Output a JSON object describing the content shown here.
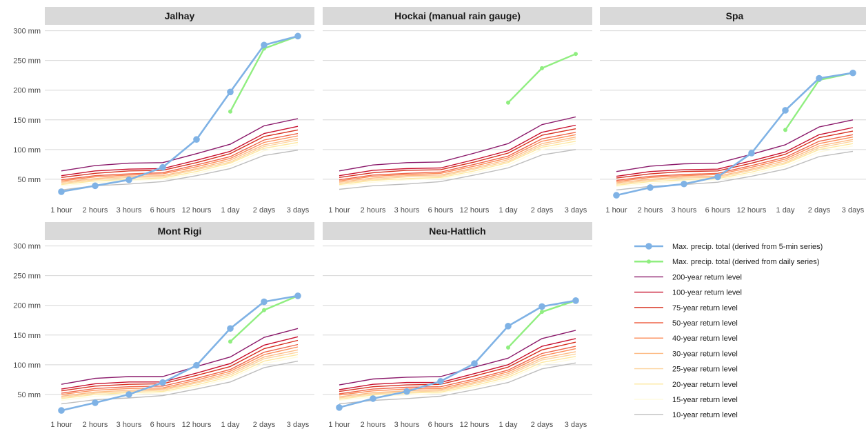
{
  "chart_data": {
    "type": "line",
    "categories": [
      "1 hour",
      "2 hours",
      "3 hours",
      "6 hours",
      "12 hours",
      "1 day",
      "2 days",
      "3 days"
    ],
    "y_tick_values": [
      50,
      100,
      150,
      200,
      250,
      300
    ],
    "y_tick_labels": [
      "50 mm",
      "100 mm",
      "150 mm",
      "200 mm",
      "250 mm",
      "300 mm"
    ],
    "ylim": [
      15,
      310
    ],
    "grid": true,
    "legend_position": "bottom-right",
    "series_styles": [
      {
        "key": "rl200",
        "label": "200-year return level",
        "color": "#8b1a6b",
        "kind": "line"
      },
      {
        "key": "rl100",
        "label": "100-year return level",
        "color": "#c8102e",
        "kind": "line"
      },
      {
        "key": "rl75",
        "label": "75-year return level",
        "color": "#d7301f",
        "kind": "line"
      },
      {
        "key": "rl50",
        "label": "50-year return level",
        "color": "#ef6548",
        "kind": "line"
      },
      {
        "key": "rl40",
        "label": "40-year return level",
        "color": "#fc8d59",
        "kind": "line"
      },
      {
        "key": "rl30",
        "label": "30-year return level",
        "color": "#fdbb84",
        "kind": "line"
      },
      {
        "key": "rl25",
        "label": "25-year return level",
        "color": "#fdd49e",
        "kind": "line"
      },
      {
        "key": "rl20",
        "label": "20-year return level",
        "color": "#fee8a0",
        "kind": "line"
      },
      {
        "key": "rl15",
        "label": "15-year return level",
        "color": "#fffbe0",
        "kind": "line"
      },
      {
        "key": "rl10",
        "label": "10-year return level",
        "color": "#bdbdbd",
        "kind": "line"
      },
      {
        "key": "daily",
        "label": "Max. precip. total (derived from daily series)",
        "color": "#90ee80",
        "kind": "point_small"
      },
      {
        "key": "fivemin",
        "label": "Max. precip. total (derived from 5-min series)",
        "color": "#7fb2e5",
        "kind": "point_large"
      }
    ],
    "legend_order": [
      "fivemin",
      "daily",
      "rl200",
      "rl100",
      "rl75",
      "rl50",
      "rl40",
      "rl30",
      "rl25",
      "rl20",
      "rl15",
      "rl10"
    ],
    "panels": [
      {
        "title": "Jalhay",
        "series": {
          "rl200": [
            64,
            73,
            77,
            78,
            93,
            109,
            140,
            152
          ],
          "rl100": [
            56,
            64,
            67,
            68,
            82,
            97,
            127,
            139
          ],
          "rl75": [
            53,
            60,
            64,
            65,
            78,
            93,
            122,
            133
          ],
          "rl50": [
            49,
            56,
            59,
            61,
            74,
            88,
            116,
            127
          ],
          "rl40": [
            47,
            54,
            57,
            59,
            71,
            85,
            112,
            123
          ],
          "rl30": [
            45,
            51,
            55,
            56,
            68,
            82,
            108,
            119
          ],
          "rl25": [
            43,
            49,
            53,
            54,
            66,
            79,
            105,
            116
          ],
          "rl20": [
            41,
            47,
            50,
            52,
            63,
            77,
            102,
            112
          ],
          "rl15": [
            39,
            44,
            48,
            50,
            60,
            73,
            98,
            108
          ],
          "rl10": [
            32,
            39,
            42,
            46,
            56,
            68,
            90,
            99
          ],
          "daily": [
            null,
            null,
            null,
            null,
            null,
            164,
            270,
            291
          ],
          "fivemin": [
            29,
            39,
            49,
            70,
            117,
            197,
            276,
            291
          ]
        }
      },
      {
        "title": "Hockai (manual rain gauge)",
        "series": {
          "rl200": [
            64,
            74,
            78,
            79,
            94,
            110,
            142,
            155
          ],
          "rl100": [
            56,
            65,
            68,
            69,
            83,
            98,
            129,
            141
          ],
          "rl75": [
            53,
            61,
            65,
            66,
            79,
            94,
            124,
            135
          ],
          "rl50": [
            49,
            57,
            60,
            62,
            75,
            89,
            118,
            129
          ],
          "rl40": [
            47,
            55,
            58,
            60,
            72,
            86,
            114,
            125
          ],
          "rl30": [
            45,
            52,
            56,
            57,
            69,
            83,
            110,
            121
          ],
          "rl25": [
            43,
            50,
            54,
            55,
            67,
            80,
            107,
            118
          ],
          "rl20": [
            41,
            48,
            51,
            53,
            64,
            78,
            104,
            114
          ],
          "rl15": [
            39,
            45,
            49,
            51,
            61,
            74,
            100,
            110
          ],
          "rl10": [
            33,
            39,
            42,
            46,
            57,
            69,
            91,
            100
          ],
          "daily": [
            null,
            null,
            null,
            null,
            null,
            179,
            237,
            261
          ],
          "fivemin": [
            null,
            null,
            null,
            null,
            null,
            null,
            null,
            null
          ]
        }
      },
      {
        "title": "Spa",
        "series": {
          "rl200": [
            63,
            72,
            76,
            77,
            92,
            108,
            138,
            150
          ],
          "rl100": [
            55,
            63,
            66,
            67,
            81,
            96,
            125,
            137
          ],
          "rl75": [
            52,
            59,
            63,
            64,
            77,
            92,
            120,
            131
          ],
          "rl50": [
            48,
            55,
            58,
            60,
            73,
            87,
            114,
            125
          ],
          "rl40": [
            46,
            53,
            56,
            58,
            70,
            84,
            110,
            121
          ],
          "rl30": [
            44,
            50,
            54,
            55,
            67,
            81,
            106,
            117
          ],
          "rl25": [
            42,
            48,
            52,
            53,
            65,
            78,
            103,
            114
          ],
          "rl20": [
            40,
            46,
            49,
            51,
            62,
            76,
            100,
            110
          ],
          "rl15": [
            38,
            43,
            47,
            49,
            59,
            72,
            96,
            106
          ],
          "rl10": [
            32,
            38,
            41,
            45,
            55,
            67,
            88,
            97
          ],
          "daily": [
            null,
            null,
            null,
            null,
            null,
            133,
            217,
            229
          ],
          "fivemin": [
            23,
            36,
            42,
            54,
            94,
            166,
            220,
            229
          ]
        }
      },
      {
        "title": "Mont Rigi",
        "series": {
          "rl200": [
            67,
            77,
            80,
            80,
            97,
            113,
            146,
            161
          ],
          "rl100": [
            59,
            68,
            71,
            71,
            86,
            102,
            133,
            147
          ],
          "rl75": [
            56,
            64,
            67,
            68,
            82,
            97,
            127,
            141
          ],
          "rl50": [
            52,
            60,
            63,
            64,
            77,
            92,
            121,
            134
          ],
          "rl40": [
            50,
            57,
            60,
            61,
            74,
            89,
            117,
            130
          ],
          "rl30": [
            47,
            54,
            57,
            59,
            71,
            86,
            113,
            125
          ],
          "rl25": [
            45,
            52,
            55,
            57,
            69,
            83,
            110,
            121
          ],
          "rl20": [
            43,
            50,
            53,
            55,
            66,
            80,
            106,
            117
          ],
          "rl15": [
            40,
            47,
            50,
            53,
            63,
            77,
            102,
            113
          ],
          "rl10": [
            34,
            41,
            44,
            48,
            59,
            71,
            95,
            106
          ],
          "daily": [
            null,
            null,
            null,
            null,
            null,
            139,
            192,
            216
          ],
          "fivemin": [
            23,
            36,
            50,
            70,
            99,
            161,
            206,
            216
          ]
        }
      },
      {
        "title": "Neu-Hattlich",
        "series": {
          "rl200": [
            66,
            76,
            79,
            80,
            96,
            111,
            144,
            158
          ],
          "rl100": [
            58,
            67,
            70,
            70,
            85,
            100,
            131,
            144
          ],
          "rl75": [
            55,
            63,
            66,
            67,
            81,
            96,
            125,
            138
          ],
          "rl50": [
            51,
            59,
            62,
            63,
            76,
            91,
            119,
            131
          ],
          "rl40": [
            49,
            56,
            59,
            60,
            73,
            88,
            115,
            127
          ],
          "rl30": [
            46,
            53,
            56,
            58,
            70,
            85,
            111,
            122
          ],
          "rl25": [
            44,
            51,
            54,
            56,
            68,
            82,
            108,
            118
          ],
          "rl20": [
            42,
            49,
            52,
            54,
            65,
            79,
            104,
            114
          ],
          "rl15": [
            40,
            46,
            49,
            52,
            62,
            76,
            100,
            110
          ],
          "rl10": [
            34,
            40,
            43,
            47,
            58,
            70,
            93,
            103
          ],
          "daily": [
            null,
            null,
            null,
            null,
            null,
            129,
            189,
            208
          ],
          "fivemin": [
            28,
            43,
            55,
            72,
            102,
            165,
            198,
            208
          ]
        }
      }
    ]
  }
}
